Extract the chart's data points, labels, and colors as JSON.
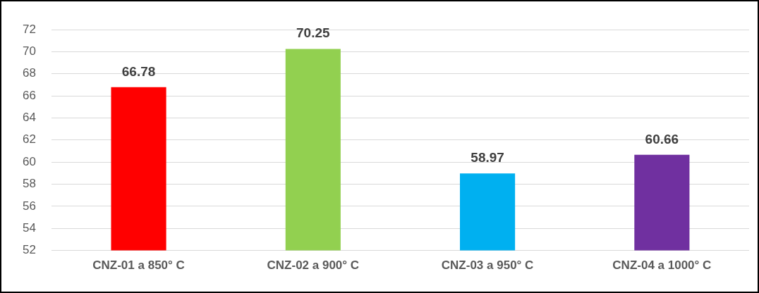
{
  "chart_data": {
    "type": "bar",
    "categories": [
      "CNZ-01 a 850° C",
      "CNZ-02 a 900° C",
      "CNZ-03 a 950° C",
      "CNZ-04 a 1000° C"
    ],
    "values": [
      66.78,
      70.25,
      58.97,
      60.66
    ],
    "colors": [
      "#ff0000",
      "#92d050",
      "#00b0f0",
      "#7030a0"
    ],
    "ylim": [
      52,
      72
    ],
    "yticks": [
      52,
      54,
      56,
      58,
      60,
      62,
      64,
      66,
      68,
      70,
      72
    ],
    "grid": "y",
    "legend": false,
    "data_labels": true
  }
}
